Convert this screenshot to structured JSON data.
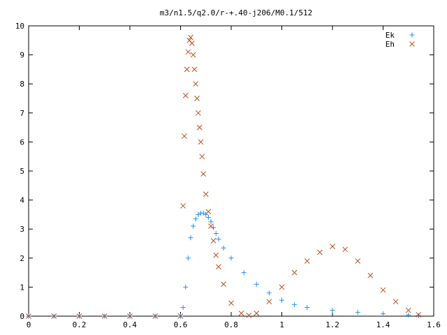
{
  "chart_data": {
    "type": "scatter",
    "title": "m3/n1.5/q2.0/r-+.40-j206/M0.1/512",
    "xlabel": "",
    "ylabel": "",
    "xlim": [
      0,
      1.6
    ],
    "ylim": [
      0,
      10
    ],
    "x_ticks": [
      "0",
      "0.2",
      "0.4",
      "0.6",
      "0.8",
      "1",
      "1.2",
      "1.4",
      "1.6"
    ],
    "y_ticks": [
      "0",
      "1",
      "2",
      "3",
      "4",
      "5",
      "6",
      "7",
      "8",
      "9",
      "10"
    ],
    "grid": false,
    "legend_position": "top-right",
    "series": [
      {
        "name": "Ek",
        "marker": "plus",
        "color": "#1e90ff",
        "x": [
          0.0,
          0.1,
          0.2,
          0.3,
          0.4,
          0.5,
          0.6,
          0.61,
          0.62,
          0.63,
          0.64,
          0.65,
          0.66,
          0.67,
          0.68,
          0.69,
          0.7,
          0.71,
          0.72,
          0.73,
          0.74,
          0.75,
          0.77,
          0.8,
          0.85,
          0.9,
          0.95,
          1.0,
          1.05,
          1.1,
          1.2,
          1.3,
          1.4,
          1.5,
          1.54
        ],
        "y": [
          0.0,
          0.0,
          0.0,
          0.0,
          0.0,
          0.0,
          0.0,
          0.3,
          1.0,
          2.0,
          2.7,
          3.1,
          3.35,
          3.5,
          3.55,
          3.55,
          3.5,
          3.4,
          3.25,
          3.05,
          2.85,
          2.65,
          2.35,
          2.0,
          1.5,
          1.1,
          0.8,
          0.55,
          0.4,
          0.3,
          0.2,
          0.13,
          0.08,
          0.04,
          0.02
        ]
      },
      {
        "name": "Eh",
        "marker": "cross",
        "color": "#b8501e",
        "x": [
          0.0,
          0.1,
          0.2,
          0.3,
          0.4,
          0.5,
          0.6,
          0.61,
          0.615,
          0.62,
          0.625,
          0.63,
          0.635,
          0.64,
          0.645,
          0.65,
          0.655,
          0.66,
          0.665,
          0.67,
          0.675,
          0.68,
          0.685,
          0.69,
          0.7,
          0.71,
          0.72,
          0.73,
          0.74,
          0.75,
          0.77,
          0.8,
          0.84,
          0.87,
          0.9,
          0.95,
          1.0,
          1.05,
          1.1,
          1.15,
          1.2,
          1.25,
          1.3,
          1.35,
          1.4,
          1.45,
          1.5,
          1.54
        ],
        "y": [
          0.0,
          0.0,
          0.0,
          0.0,
          0.0,
          0.0,
          0.0,
          3.8,
          6.2,
          7.6,
          8.5,
          9.1,
          9.5,
          9.6,
          9.4,
          9.0,
          8.5,
          8.0,
          7.5,
          7.0,
          6.5,
          6.0,
          5.5,
          4.9,
          4.2,
          3.6,
          3.1,
          2.6,
          2.1,
          1.7,
          1.1,
          0.45,
          0.1,
          0.03,
          0.1,
          0.5,
          1.0,
          1.5,
          1.9,
          2.2,
          2.4,
          2.3,
          1.9,
          1.4,
          0.9,
          0.5,
          0.2,
          0.05
        ]
      }
    ]
  }
}
